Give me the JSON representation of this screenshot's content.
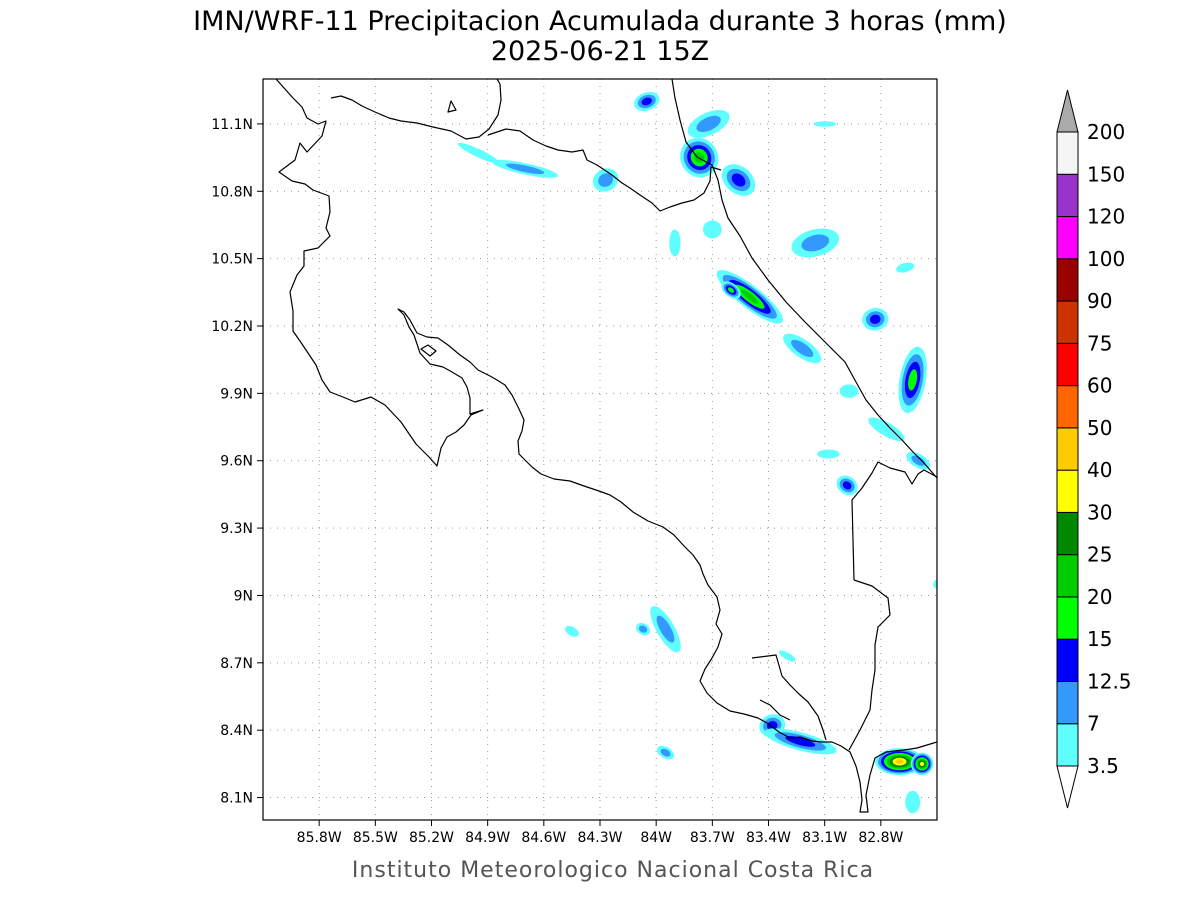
{
  "title": {
    "line1": "IMN/WRF-11 Precipitacion Acumulada durante 3 horas (mm)",
    "line2": "2025-06-21 15Z"
  },
  "credit": "Instituto Meteorologico Nacional Costa Rica",
  "map": {
    "lon_range": [
      -86.1,
      -82.5
    ],
    "lat_range": [
      8.0,
      11.3
    ],
    "lon_ticks": [
      {
        "label": "85.8W",
        "value": -85.8
      },
      {
        "label": "85.5W",
        "value": -85.5
      },
      {
        "label": "85.2W",
        "value": -85.2
      },
      {
        "label": "84.9W",
        "value": -84.9
      },
      {
        "label": "84.6W",
        "value": -84.6
      },
      {
        "label": "84.3W",
        "value": -84.3
      },
      {
        "label": "84W",
        "value": -84.0
      },
      {
        "label": "83.7W",
        "value": -83.7
      },
      {
        "label": "83.4W",
        "value": -83.4
      },
      {
        "label": "83.1W",
        "value": -83.1
      },
      {
        "label": "82.8W",
        "value": -82.8
      }
    ],
    "lat_ticks": [
      {
        "label": "11.1N",
        "value": 11.1
      },
      {
        "label": "10.8N",
        "value": 10.8
      },
      {
        "label": "10.5N",
        "value": 10.5
      },
      {
        "label": "10.2N",
        "value": 10.2
      },
      {
        "label": "9.9N",
        "value": 9.9
      },
      {
        "label": "9.6N",
        "value": 9.6
      },
      {
        "label": "9.3N",
        "value": 9.3
      },
      {
        "label": "9N",
        "value": 9.0
      },
      {
        "label": "8.7N",
        "value": 8.7
      },
      {
        "label": "8.4N",
        "value": 8.4
      },
      {
        "label": "8.1N",
        "value": 8.1
      }
    ],
    "grid": true
  },
  "colorbar": {
    "bins": [
      {
        "label": "3.5",
        "color": "#5fffff"
      },
      {
        "label": "7",
        "color": "#3399ff"
      },
      {
        "label": "12.5",
        "color": "#0000ff"
      },
      {
        "label": "15",
        "color": "#00ff00"
      },
      {
        "label": "20",
        "color": "#00cc00"
      },
      {
        "label": "25",
        "color": "#008800"
      },
      {
        "label": "30",
        "color": "#ffff00"
      },
      {
        "label": "40",
        "color": "#ffcc00"
      },
      {
        "label": "50",
        "color": "#ff6600"
      },
      {
        "label": "60",
        "color": "#ff0000"
      },
      {
        "label": "75",
        "color": "#cc3300"
      },
      {
        "label": "90",
        "color": "#990000"
      },
      {
        "label": "100",
        "color": "#ff00ff"
      },
      {
        "label": "120",
        "color": "#9933cc"
      },
      {
        "label": "150",
        "color": "#f5f5f5"
      },
      {
        "label": "200",
        "color": "#aaaaaa"
      }
    ],
    "lower_arrow_color": "#ffffff",
    "upper_arrow_color": "#aaaaaa"
  },
  "precip_cells": [
    {
      "lon": -84.05,
      "lat": 11.2,
      "rx": 0.07,
      "ry": 0.04,
      "max": 2,
      "rot": -20
    },
    {
      "lon": -83.72,
      "lat": 11.1,
      "rx": 0.12,
      "ry": 0.05,
      "max": 1,
      "rot": -25
    },
    {
      "lon": -83.77,
      "lat": 10.95,
      "rx": 0.1,
      "ry": 0.09,
      "max": 4,
      "rot": -30
    },
    {
      "lon": -83.56,
      "lat": 10.85,
      "rx": 0.1,
      "ry": 0.06,
      "max": 2,
      "rot": 40
    },
    {
      "lon": -84.7,
      "lat": 10.9,
      "rx": 0.18,
      "ry": 0.025,
      "max": 1,
      "rot": 12
    },
    {
      "lon": -84.95,
      "lat": 10.97,
      "rx": 0.12,
      "ry": 0.018,
      "max": 0,
      "rot": 25
    },
    {
      "lon": -84.27,
      "lat": 10.85,
      "rx": 0.07,
      "ry": 0.05,
      "max": 1,
      "rot": -30
    },
    {
      "lon": -83.1,
      "lat": 11.1,
      "rx": 0.06,
      "ry": 0.012,
      "max": 0,
      "rot": 0
    },
    {
      "lon": -83.15,
      "lat": 10.57,
      "rx": 0.13,
      "ry": 0.06,
      "max": 1,
      "rot": -15
    },
    {
      "lon": -83.9,
      "lat": 10.57,
      "rx": 0.03,
      "ry": 0.06,
      "max": 0,
      "rot": 0
    },
    {
      "lon": -83.7,
      "lat": 10.63,
      "rx": 0.05,
      "ry": 0.04,
      "max": 0,
      "rot": 0
    },
    {
      "lon": -83.5,
      "lat": 10.33,
      "rx": 0.22,
      "ry": 0.05,
      "max": 4,
      "rot": 38
    },
    {
      "lon": -83.6,
      "lat": 10.36,
      "rx": 0.06,
      "ry": 0.03,
      "max": 3,
      "rot": 38
    },
    {
      "lon": -83.22,
      "lat": 10.1,
      "rx": 0.12,
      "ry": 0.04,
      "max": 1,
      "rot": 35
    },
    {
      "lon": -82.83,
      "lat": 10.23,
      "rx": 0.07,
      "ry": 0.05,
      "max": 2,
      "rot": -10
    },
    {
      "lon": -82.63,
      "lat": 9.96,
      "rx": 0.07,
      "ry": 0.15,
      "max": 3,
      "rot": 10
    },
    {
      "lon": -82.77,
      "lat": 9.74,
      "rx": 0.11,
      "ry": 0.03,
      "max": 0,
      "rot": 30
    },
    {
      "lon": -82.6,
      "lat": 9.6,
      "rx": 0.07,
      "ry": 0.03,
      "max": 1,
      "rot": 30
    },
    {
      "lon": -82.98,
      "lat": 9.49,
      "rx": 0.06,
      "ry": 0.04,
      "max": 2,
      "rot": 35
    },
    {
      "lon": -83.08,
      "lat": 9.63,
      "rx": 0.06,
      "ry": 0.02,
      "max": 0,
      "rot": 0
    },
    {
      "lon": -82.97,
      "lat": 9.91,
      "rx": 0.05,
      "ry": 0.03,
      "max": 0,
      "rot": 0
    },
    {
      "lon": -82.67,
      "lat": 10.46,
      "rx": 0.05,
      "ry": 0.02,
      "max": 0,
      "rot": -15
    },
    {
      "lon": -83.95,
      "lat": 8.85,
      "rx": 0.14,
      "ry": 0.04,
      "max": 1,
      "rot": 60
    },
    {
      "lon": -84.07,
      "lat": 8.85,
      "rx": 0.04,
      "ry": 0.025,
      "max": 1,
      "rot": 30
    },
    {
      "lon": -84.45,
      "lat": 8.84,
      "rx": 0.04,
      "ry": 0.02,
      "max": 0,
      "rot": 30
    },
    {
      "lon": -83.38,
      "lat": 8.42,
      "rx": 0.07,
      "ry": 0.05,
      "max": 2,
      "rot": -20
    },
    {
      "lon": -83.23,
      "lat": 8.35,
      "rx": 0.2,
      "ry": 0.04,
      "max": 2,
      "rot": 15
    },
    {
      "lon": -83.95,
      "lat": 8.3,
      "rx": 0.05,
      "ry": 0.025,
      "max": 1,
      "rot": 30
    },
    {
      "lon": -82.7,
      "lat": 8.26,
      "rx": 0.13,
      "ry": 0.06,
      "max": 7,
      "rot": 0
    },
    {
      "lon": -82.58,
      "lat": 8.25,
      "rx": 0.06,
      "ry": 0.05,
      "max": 6,
      "rot": 0
    },
    {
      "lon": -82.63,
      "lat": 8.08,
      "rx": 0.04,
      "ry": 0.05,
      "max": 0,
      "rot": 0
    },
    {
      "lon": -83.3,
      "lat": 8.73,
      "rx": 0.05,
      "ry": 0.015,
      "max": 0,
      "rot": 30
    },
    {
      "lon": -82.5,
      "lat": 9.05,
      "rx": 0.02,
      "ry": 0.02,
      "max": 0,
      "rot": 0
    }
  ]
}
